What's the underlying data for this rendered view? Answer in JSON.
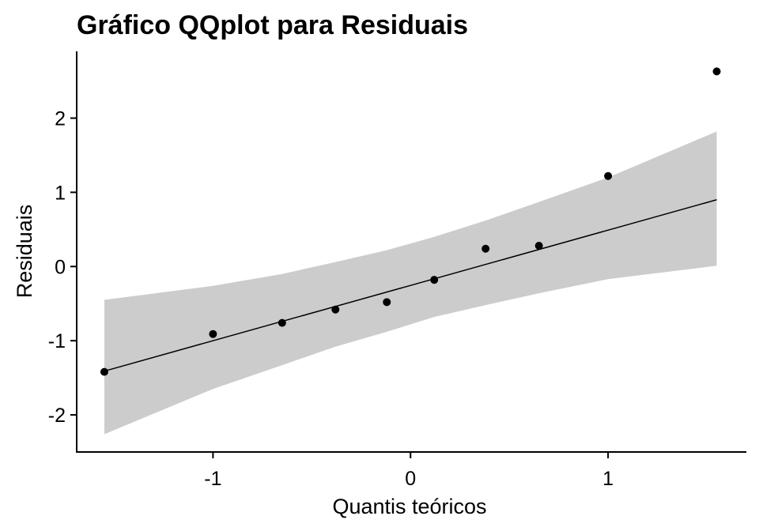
{
  "chart_data": {
    "type": "scatter",
    "title": "Gráfico QQplot para Residuais",
    "xlabel": "Quantis teóricos",
    "ylabel": "Residuais",
    "xlim": [
      -1.69,
      1.7
    ],
    "ylim": [
      -2.5,
      2.9
    ],
    "x_ticks": [
      {
        "value": -1,
        "label": "-1"
      },
      {
        "value": 0,
        "label": "0"
      },
      {
        "value": 1,
        "label": "1"
      }
    ],
    "y_ticks": [
      {
        "value": -2,
        "label": "-2"
      },
      {
        "value": -1,
        "label": "-1"
      },
      {
        "value": 0,
        "label": "0"
      },
      {
        "value": 1,
        "label": "1"
      },
      {
        "value": 2,
        "label": "2"
      }
    ],
    "points": [
      {
        "x": -1.55,
        "y": -1.42
      },
      {
        "x": -1.0,
        "y": -0.91
      },
      {
        "x": -0.65,
        "y": -0.76
      },
      {
        "x": -0.38,
        "y": -0.58
      },
      {
        "x": -0.12,
        "y": -0.48
      },
      {
        "x": 0.12,
        "y": -0.18
      },
      {
        "x": 0.38,
        "y": 0.24
      },
      {
        "x": 0.65,
        "y": 0.28
      },
      {
        "x": 1.0,
        "y": 1.22
      },
      {
        "x": 1.55,
        "y": 2.63
      }
    ],
    "reference_line": {
      "x": [
        -1.55,
        1.55
      ],
      "y": [
        -1.41,
        0.9
      ]
    },
    "confidence_band": {
      "x": [
        -1.55,
        -1.0,
        -0.65,
        -0.38,
        -0.12,
        0.12,
        0.38,
        0.65,
        1.0,
        1.55
      ],
      "upper": [
        -0.45,
        -0.26,
        -0.1,
        0.06,
        0.22,
        0.4,
        0.62,
        0.87,
        1.2,
        1.82
      ],
      "lower": [
        -2.26,
        -1.65,
        -1.33,
        -1.08,
        -0.88,
        -0.68,
        -0.52,
        -0.36,
        -0.17,
        0.01
      ]
    },
    "colors": {
      "points": "#000000",
      "line": "#000000",
      "band": "#cccccc",
      "axis": "#000000"
    },
    "grid": false,
    "legend": "none"
  }
}
